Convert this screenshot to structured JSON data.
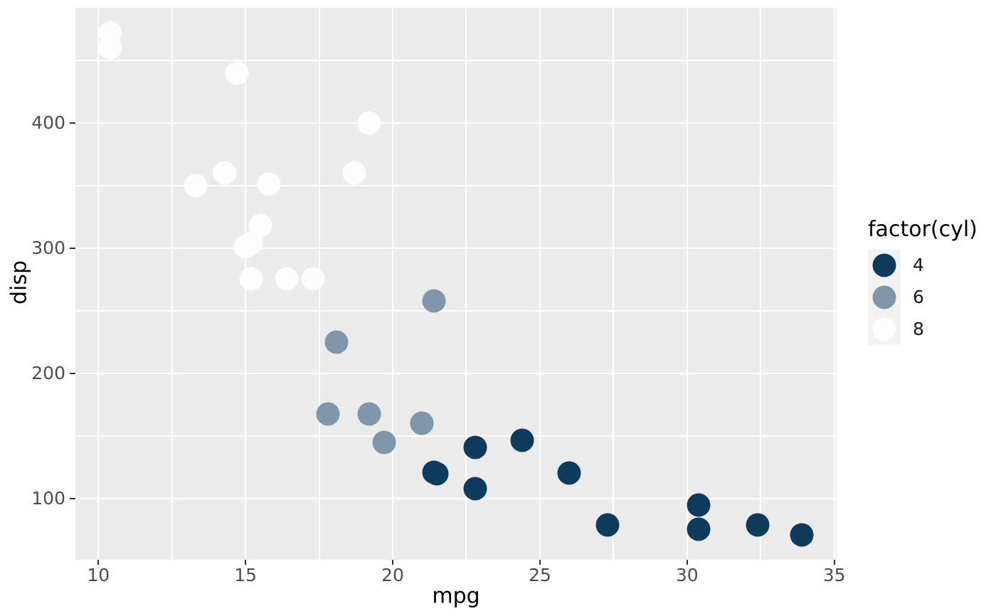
{
  "chart_data": {
    "type": "scatter",
    "title": "",
    "xlabel": "mpg",
    "ylabel": "disp",
    "xlim": [
      9.22,
      35.08
    ],
    "ylim": [
      51.1,
      492.0
    ],
    "x_ticks": [
      10,
      15,
      20,
      25,
      30,
      35
    ],
    "x_minor_ticks": [
      12.5,
      17.5,
      22.5,
      27.5,
      32.5
    ],
    "y_ticks": [
      100,
      200,
      300,
      400
    ],
    "y_minor_ticks": [
      150,
      250,
      350,
      450
    ],
    "grid": "on",
    "legend_position": "right",
    "legend": {
      "title": "factor(cyl)",
      "entries": [
        {
          "label": "4",
          "color": "#0e3a5c"
        },
        {
          "label": "6",
          "color": "#8097ab"
        },
        {
          "label": "8",
          "color": "#fdfdfd"
        }
      ]
    },
    "series": [
      {
        "name": "4",
        "color": "#0e3a5c",
        "points": [
          [
            22.8,
            108.0
          ],
          [
            24.4,
            146.7
          ],
          [
            22.8,
            140.8
          ],
          [
            32.4,
            78.7
          ],
          [
            30.4,
            75.7
          ],
          [
            33.9,
            71.1
          ],
          [
            21.5,
            120.1
          ],
          [
            27.3,
            79.0
          ],
          [
            26.0,
            120.3
          ],
          [
            30.4,
            95.1
          ],
          [
            21.4,
            121.0
          ]
        ]
      },
      {
        "name": "6",
        "color": "#8097ab",
        "points": [
          [
            21.0,
            160.0
          ],
          [
            21.0,
            160.0
          ],
          [
            21.4,
            258.0
          ],
          [
            18.1,
            225.0
          ],
          [
            19.2,
            167.6
          ],
          [
            17.8,
            167.6
          ],
          [
            19.7,
            145.0
          ]
        ]
      },
      {
        "name": "8",
        "color": "#fdfdfd",
        "points": [
          [
            18.7,
            360.0
          ],
          [
            14.3,
            360.0
          ],
          [
            16.4,
            275.8
          ],
          [
            17.3,
            275.8
          ],
          [
            15.2,
            275.8
          ],
          [
            10.4,
            472.0
          ],
          [
            10.4,
            460.0
          ],
          [
            14.7,
            440.0
          ],
          [
            15.5,
            318.0
          ],
          [
            15.2,
            304.0
          ],
          [
            13.3,
            350.0
          ],
          [
            19.2,
            400.0
          ],
          [
            15.8,
            351.0
          ],
          [
            15.0,
            301.0
          ]
        ]
      }
    ]
  },
  "colors": {
    "page_bg": "#ffffff",
    "panel_bg": "#ebebeb",
    "grid_major": "#ffffff",
    "grid_minor": "#ffffff",
    "tick_mark": "#333333",
    "tick_label": "#4d4d4d",
    "axis_title": "#000000",
    "legend_title": "#000000",
    "legend_label": "#1a1a1a",
    "legend_key_bg": "#f2f2f2"
  }
}
